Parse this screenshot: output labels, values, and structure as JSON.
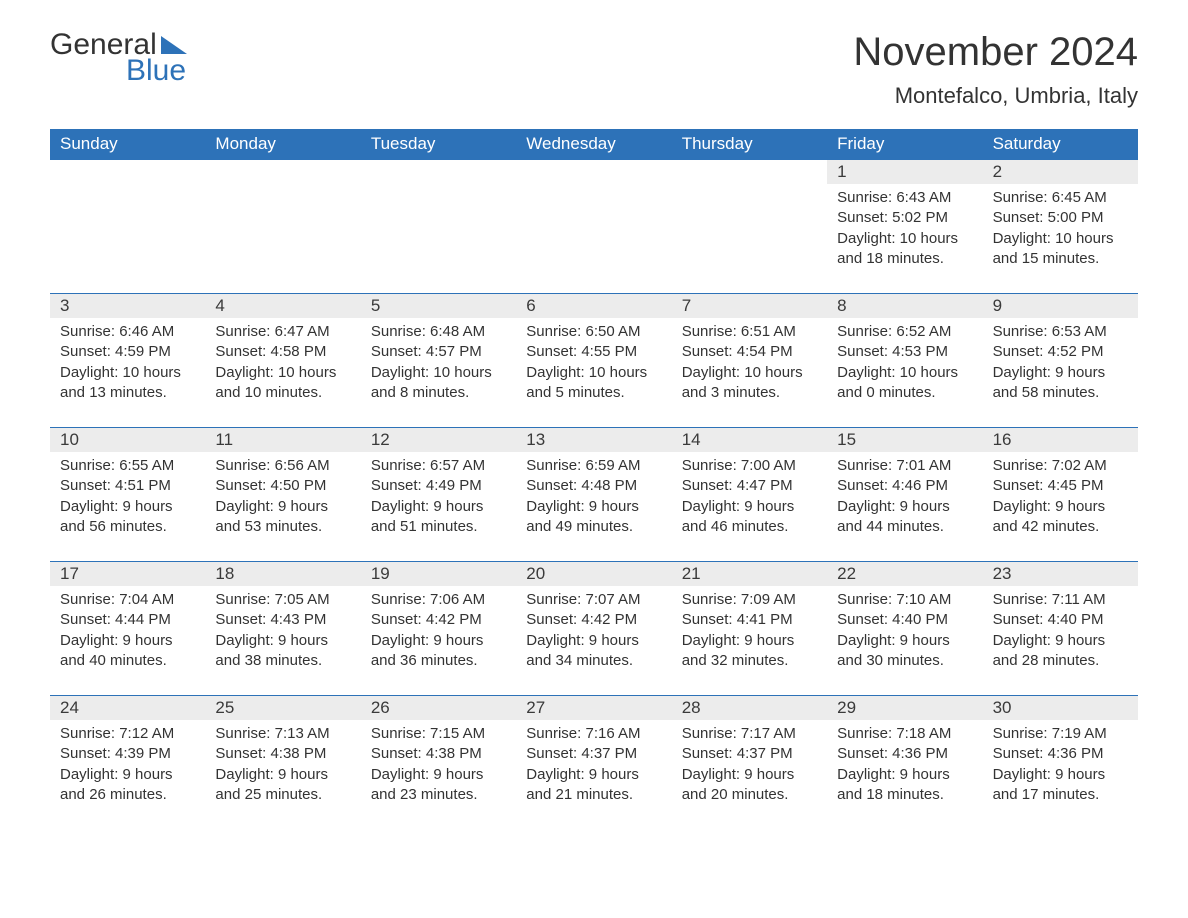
{
  "logo": {
    "line1": "General",
    "line2": "Blue"
  },
  "title": "November 2024",
  "location": "Montefalco, Umbria, Italy",
  "colors": {
    "accent": "#2d72b8",
    "band": "#ececec",
    "text": "#333333",
    "background": "#ffffff"
  },
  "day_names": [
    "Sunday",
    "Monday",
    "Tuesday",
    "Wednesday",
    "Thursday",
    "Friday",
    "Saturday"
  ],
  "weeks": [
    {
      "cells": [
        null,
        null,
        null,
        null,
        null,
        {
          "num": "1",
          "sunrise": "Sunrise: 6:43 AM",
          "sunset": "Sunset: 5:02 PM",
          "daylight": "Daylight: 10 hours and 18 minutes."
        },
        {
          "num": "2",
          "sunrise": "Sunrise: 6:45 AM",
          "sunset": "Sunset: 5:00 PM",
          "daylight": "Daylight: 10 hours and 15 minutes."
        }
      ]
    },
    {
      "cells": [
        {
          "num": "3",
          "sunrise": "Sunrise: 6:46 AM",
          "sunset": "Sunset: 4:59 PM",
          "daylight": "Daylight: 10 hours and 13 minutes."
        },
        {
          "num": "4",
          "sunrise": "Sunrise: 6:47 AM",
          "sunset": "Sunset: 4:58 PM",
          "daylight": "Daylight: 10 hours and 10 minutes."
        },
        {
          "num": "5",
          "sunrise": "Sunrise: 6:48 AM",
          "sunset": "Sunset: 4:57 PM",
          "daylight": "Daylight: 10 hours and 8 minutes."
        },
        {
          "num": "6",
          "sunrise": "Sunrise: 6:50 AM",
          "sunset": "Sunset: 4:55 PM",
          "daylight": "Daylight: 10 hours and 5 minutes."
        },
        {
          "num": "7",
          "sunrise": "Sunrise: 6:51 AM",
          "sunset": "Sunset: 4:54 PM",
          "daylight": "Daylight: 10 hours and 3 minutes."
        },
        {
          "num": "8",
          "sunrise": "Sunrise: 6:52 AM",
          "sunset": "Sunset: 4:53 PM",
          "daylight": "Daylight: 10 hours and 0 minutes."
        },
        {
          "num": "9",
          "sunrise": "Sunrise: 6:53 AM",
          "sunset": "Sunset: 4:52 PM",
          "daylight": "Daylight: 9 hours and 58 minutes."
        }
      ]
    },
    {
      "cells": [
        {
          "num": "10",
          "sunrise": "Sunrise: 6:55 AM",
          "sunset": "Sunset: 4:51 PM",
          "daylight": "Daylight: 9 hours and 56 minutes."
        },
        {
          "num": "11",
          "sunrise": "Sunrise: 6:56 AM",
          "sunset": "Sunset: 4:50 PM",
          "daylight": "Daylight: 9 hours and 53 minutes."
        },
        {
          "num": "12",
          "sunrise": "Sunrise: 6:57 AM",
          "sunset": "Sunset: 4:49 PM",
          "daylight": "Daylight: 9 hours and 51 minutes."
        },
        {
          "num": "13",
          "sunrise": "Sunrise: 6:59 AM",
          "sunset": "Sunset: 4:48 PM",
          "daylight": "Daylight: 9 hours and 49 minutes."
        },
        {
          "num": "14",
          "sunrise": "Sunrise: 7:00 AM",
          "sunset": "Sunset: 4:47 PM",
          "daylight": "Daylight: 9 hours and 46 minutes."
        },
        {
          "num": "15",
          "sunrise": "Sunrise: 7:01 AM",
          "sunset": "Sunset: 4:46 PM",
          "daylight": "Daylight: 9 hours and 44 minutes."
        },
        {
          "num": "16",
          "sunrise": "Sunrise: 7:02 AM",
          "sunset": "Sunset: 4:45 PM",
          "daylight": "Daylight: 9 hours and 42 minutes."
        }
      ]
    },
    {
      "cells": [
        {
          "num": "17",
          "sunrise": "Sunrise: 7:04 AM",
          "sunset": "Sunset: 4:44 PM",
          "daylight": "Daylight: 9 hours and 40 minutes."
        },
        {
          "num": "18",
          "sunrise": "Sunrise: 7:05 AM",
          "sunset": "Sunset: 4:43 PM",
          "daylight": "Daylight: 9 hours and 38 minutes."
        },
        {
          "num": "19",
          "sunrise": "Sunrise: 7:06 AM",
          "sunset": "Sunset: 4:42 PM",
          "daylight": "Daylight: 9 hours and 36 minutes."
        },
        {
          "num": "20",
          "sunrise": "Sunrise: 7:07 AM",
          "sunset": "Sunset: 4:42 PM",
          "daylight": "Daylight: 9 hours and 34 minutes."
        },
        {
          "num": "21",
          "sunrise": "Sunrise: 7:09 AM",
          "sunset": "Sunset: 4:41 PM",
          "daylight": "Daylight: 9 hours and 32 minutes."
        },
        {
          "num": "22",
          "sunrise": "Sunrise: 7:10 AM",
          "sunset": "Sunset: 4:40 PM",
          "daylight": "Daylight: 9 hours and 30 minutes."
        },
        {
          "num": "23",
          "sunrise": "Sunrise: 7:11 AM",
          "sunset": "Sunset: 4:40 PM",
          "daylight": "Daylight: 9 hours and 28 minutes."
        }
      ]
    },
    {
      "cells": [
        {
          "num": "24",
          "sunrise": "Sunrise: 7:12 AM",
          "sunset": "Sunset: 4:39 PM",
          "daylight": "Daylight: 9 hours and 26 minutes."
        },
        {
          "num": "25",
          "sunrise": "Sunrise: 7:13 AM",
          "sunset": "Sunset: 4:38 PM",
          "daylight": "Daylight: 9 hours and 25 minutes."
        },
        {
          "num": "26",
          "sunrise": "Sunrise: 7:15 AM",
          "sunset": "Sunset: 4:38 PM",
          "daylight": "Daylight: 9 hours and 23 minutes."
        },
        {
          "num": "27",
          "sunrise": "Sunrise: 7:16 AM",
          "sunset": "Sunset: 4:37 PM",
          "daylight": "Daylight: 9 hours and 21 minutes."
        },
        {
          "num": "28",
          "sunrise": "Sunrise: 7:17 AM",
          "sunset": "Sunset: 4:37 PM",
          "daylight": "Daylight: 9 hours and 20 minutes."
        },
        {
          "num": "29",
          "sunrise": "Sunrise: 7:18 AM",
          "sunset": "Sunset: 4:36 PM",
          "daylight": "Daylight: 9 hours and 18 minutes."
        },
        {
          "num": "30",
          "sunrise": "Sunrise: 7:19 AM",
          "sunset": "Sunset: 4:36 PM",
          "daylight": "Daylight: 9 hours and 17 minutes."
        }
      ]
    }
  ]
}
